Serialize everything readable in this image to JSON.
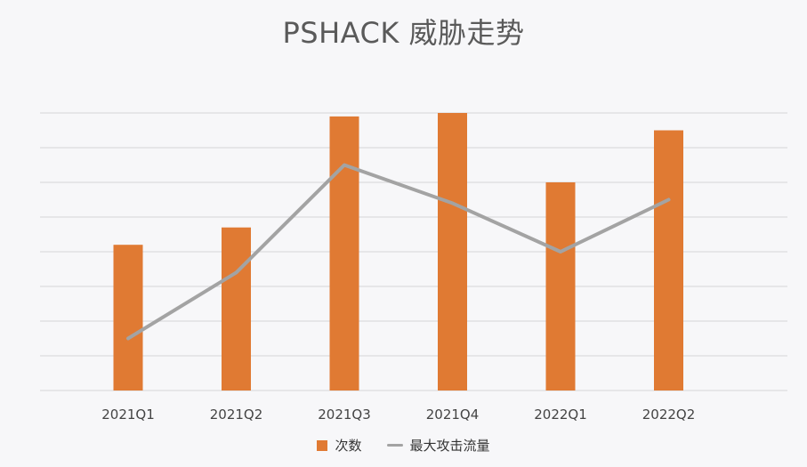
{
  "chart_data": {
    "type": "bar",
    "title": "PSHACK 威胁走势",
    "categories": [
      "2021Q1",
      "2021Q2",
      "2021Q3",
      "2021Q4",
      "2022Q1",
      "2022Q2"
    ],
    "series": [
      {
        "name": "次数",
        "kind": "bar",
        "color": "#e07a33",
        "values": [
          4.2,
          4.7,
          7.9,
          8.0,
          6.0,
          7.5
        ]
      },
      {
        "name": "最大攻击流量",
        "kind": "line",
        "color": "#a3a3a3",
        "values": [
          1.5,
          3.4,
          6.5,
          5.4,
          4.0,
          5.5
        ]
      }
    ],
    "ylim": [
      0,
      8
    ],
    "grid": true,
    "legend": "bottom"
  }
}
